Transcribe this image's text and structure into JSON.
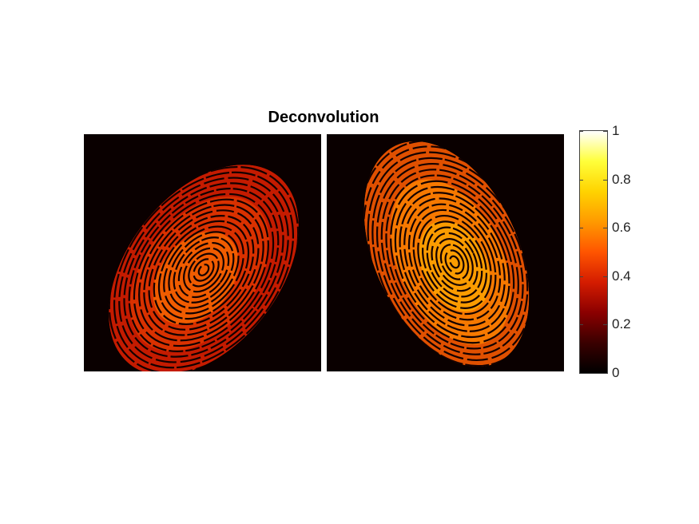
{
  "figure": {
    "title": "Deconvolution",
    "colormap": "hot",
    "colormap_stops": [
      "#000000",
      "#3a0000",
      "#8b0000",
      "#d41c00",
      "#ff5500",
      "#ff9a00",
      "#ffd300",
      "#ffff3a",
      "#ffffff"
    ],
    "colorbar": {
      "range": [
        0,
        1
      ],
      "ticks": [
        "1",
        "0.8",
        "0.6",
        "0.4",
        "0.2",
        "0"
      ],
      "tick_values": [
        1,
        0.8,
        0.6,
        0.4,
        0.2,
        0
      ]
    },
    "images": [
      {
        "name": "fingerprint-left",
        "content": "fingerprint",
        "mean_intensity": 0.5
      },
      {
        "name": "fingerprint-right",
        "content": "fingerprint",
        "mean_intensity": 0.6
      }
    ]
  }
}
